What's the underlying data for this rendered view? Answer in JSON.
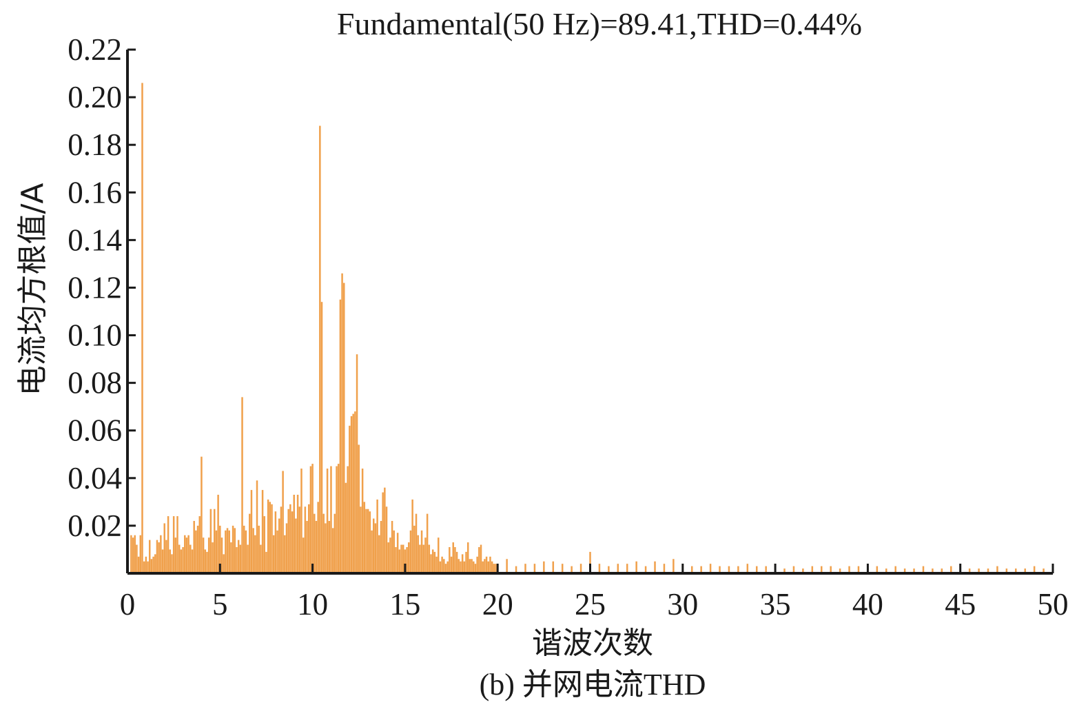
{
  "figure": {
    "caption": "(b) 并网电流THD"
  },
  "chart_data": {
    "type": "bar",
    "title": "Fundamental(50 Hz)=89.41,THD=0.44%",
    "xlabel": "谐波次数",
    "ylabel": "电流均方根值/A",
    "xlim": [
      0,
      50
    ],
    "ylim": [
      0,
      0.22
    ],
    "xticks": [
      0,
      5,
      10,
      15,
      20,
      25,
      30,
      35,
      40,
      45,
      50
    ],
    "yticks": [
      0.02,
      0.04,
      0.06,
      0.08,
      0.1,
      0.12,
      0.14,
      0.16,
      0.18,
      0.2,
      0.22
    ],
    "ytick_labels": [
      "0.02",
      "0.04",
      "0.06",
      "0.08",
      "0.10",
      "0.12",
      "0.14",
      "0.16",
      "0.18",
      "0.20",
      "0.22"
    ],
    "bar_color": "#f0a04b",
    "grid": false,
    "legend": false,
    "bar_width": 0.1,
    "x": [
      0.2,
      0.3,
      0.4,
      0.5,
      0.6,
      0.7,
      0.8,
      0.9,
      1.0,
      1.1,
      1.2,
      1.3,
      1.4,
      1.5,
      1.6,
      1.7,
      1.8,
      1.9,
      2.0,
      2.1,
      2.2,
      2.3,
      2.4,
      2.5,
      2.6,
      2.7,
      2.8,
      2.9,
      3.0,
      3.1,
      3.2,
      3.3,
      3.4,
      3.5,
      3.6,
      3.7,
      3.8,
      3.9,
      4.0,
      4.1,
      4.2,
      4.3,
      4.4,
      4.5,
      4.6,
      4.7,
      4.8,
      4.9,
      5.0,
      5.1,
      5.2,
      5.3,
      5.4,
      5.5,
      5.6,
      5.7,
      5.8,
      5.9,
      6.0,
      6.1,
      6.2,
      6.3,
      6.4,
      6.5,
      6.6,
      6.7,
      6.8,
      6.9,
      7.0,
      7.1,
      7.2,
      7.3,
      7.4,
      7.5,
      7.6,
      7.7,
      7.8,
      7.9,
      8.0,
      8.1,
      8.2,
      8.3,
      8.4,
      8.5,
      8.6,
      8.7,
      8.8,
      8.9,
      9.0,
      9.1,
      9.2,
      9.3,
      9.4,
      9.5,
      9.6,
      9.7,
      9.8,
      9.9,
      10.0,
      10.1,
      10.2,
      10.3,
      10.4,
      10.5,
      10.6,
      10.7,
      10.8,
      10.9,
      11.0,
      11.1,
      11.2,
      11.3,
      11.4,
      11.5,
      11.6,
      11.7,
      11.8,
      11.9,
      12.0,
      12.1,
      12.2,
      12.3,
      12.4,
      12.5,
      12.6,
      12.7,
      12.8,
      12.9,
      13.0,
      13.1,
      13.2,
      13.3,
      13.4,
      13.5,
      13.6,
      13.7,
      13.8,
      13.9,
      14.0,
      14.1,
      14.2,
      14.3,
      14.4,
      14.5,
      14.6,
      14.7,
      14.8,
      14.9,
      15.0,
      15.1,
      15.2,
      15.3,
      15.4,
      15.5,
      15.6,
      15.7,
      15.8,
      15.9,
      16.0,
      16.1,
      16.2,
      16.3,
      16.4,
      16.5,
      16.6,
      16.7,
      16.8,
      16.9,
      17.0,
      17.1,
      17.2,
      17.3,
      17.4,
      17.5,
      17.6,
      17.7,
      17.8,
      17.9,
      18.0,
      18.1,
      18.2,
      18.3,
      18.4,
      18.5,
      18.6,
      18.7,
      18.8,
      18.9,
      19.0,
      19.1,
      19.2,
      19.3,
      19.4,
      19.5,
      19.6,
      19.7,
      19.8,
      19.9,
      20.0,
      20.5,
      21.0,
      21.5,
      22.0,
      22.5,
      23.0,
      23.5,
      24.0,
      24.5,
      25.0,
      25.5,
      26.0,
      26.5,
      27.0,
      27.5,
      28.0,
      28.5,
      29.0,
      29.5,
      30.0,
      30.5,
      31.0,
      31.5,
      32.0,
      32.5,
      33.0,
      33.5,
      34.0,
      34.5,
      35.0,
      35.5,
      36.0,
      36.5,
      37.0,
      37.5,
      38.0,
      38.5,
      39.0,
      39.5,
      40.0,
      40.5,
      41.0,
      41.5,
      42.0,
      42.5,
      43.0,
      43.5,
      44.0,
      44.5,
      45.0,
      45.5,
      46.0,
      46.5,
      47.0,
      47.5,
      48.0,
      48.5,
      49.0,
      49.5
    ],
    "values": [
      0.016,
      0.015,
      0.016,
      0.012,
      0.007,
      0.016,
      0.206,
      0.005,
      0.007,
      0.005,
      0.014,
      0.006,
      0.007,
      0.008,
      0.014,
      0.013,
      0.016,
      0.01,
      0.021,
      0.014,
      0.024,
      0.01,
      0.008,
      0.024,
      0.015,
      0.024,
      0.012,
      0.01,
      0.011,
      0.016,
      0.015,
      0.016,
      0.012,
      0.01,
      0.022,
      0.018,
      0.02,
      0.024,
      0.049,
      0.015,
      0.01,
      0.009,
      0.015,
      0.027,
      0.013,
      0.027,
      0.018,
      0.033,
      0.02,
      0.015,
      0.008,
      0.018,
      0.019,
      0.018,
      0.013,
      0.02,
      0.019,
      0.011,
      0.014,
      0.012,
      0.074,
      0.02,
      0.018,
      0.012,
      0.025,
      0.035,
      0.019,
      0.016,
      0.039,
      0.02,
      0.012,
      0.035,
      0.024,
      0.009,
      0.031,
      0.03,
      0.029,
      0.016,
      0.026,
      0.018,
      0.023,
      0.028,
      0.043,
      0.016,
      0.021,
      0.027,
      0.029,
      0.026,
      0.033,
      0.023,
      0.033,
      0.028,
      0.044,
      0.015,
      0.028,
      0.022,
      0.029,
      0.045,
      0.046,
      0.025,
      0.022,
      0.03,
      0.188,
      0.114,
      0.025,
      0.021,
      0.044,
      0.022,
      0.045,
      0.019,
      0.025,
      0.045,
      0.046,
      0.115,
      0.126,
      0.122,
      0.038,
      0.045,
      0.062,
      0.066,
      0.067,
      0.068,
      0.092,
      0.054,
      0.028,
      0.044,
      0.03,
      0.027,
      0.027,
      0.026,
      0.018,
      0.023,
      0.021,
      0.031,
      0.016,
      0.022,
      0.034,
      0.036,
      0.028,
      0.013,
      0.015,
      0.022,
      0.018,
      0.011,
      0.017,
      0.01,
      0.012,
      0.012,
      0.01,
      0.011,
      0.013,
      0.018,
      0.031,
      0.02,
      0.025,
      0.016,
      0.012,
      0.018,
      0.012,
      0.015,
      0.025,
      0.012,
      0.008,
      0.01,
      0.009,
      0.007,
      0.015,
      0.005,
      0.007,
      0.006,
      0.004,
      0.005,
      0.011,
      0.007,
      0.013,
      0.011,
      0.009,
      0.006,
      0.005,
      0.008,
      0.005,
      0.009,
      0.013,
      0.006,
      0.006,
      0.005,
      0.004,
      0.007,
      0.011,
      0.012,
      0.005,
      0.006,
      0.007,
      0.005,
      0.007,
      0.005,
      0.004,
      0.004,
      0.004,
      0.006,
      0.003,
      0.004,
      0.004,
      0.005,
      0.005,
      0.004,
      0.003,
      0.004,
      0.009,
      0.004,
      0.003,
      0.004,
      0.004,
      0.005,
      0.003,
      0.005,
      0.004,
      0.006,
      0.004,
      0.003,
      0.003,
      0.004,
      0.003,
      0.003,
      0.003,
      0.004,
      0.003,
      0.003,
      0.004,
      0.002,
      0.003,
      0.002,
      0.003,
      0.003,
      0.003,
      0.002,
      0.003,
      0.003,
      0.002,
      0.003,
      0.002,
      0.003,
      0.002,
      0.002,
      0.003,
      0.002,
      0.002,
      0.003,
      0.002,
      0.002,
      0.002,
      0.002,
      0.003,
      0.002,
      0.002,
      0.002,
      0.003,
      0.002
    ]
  }
}
